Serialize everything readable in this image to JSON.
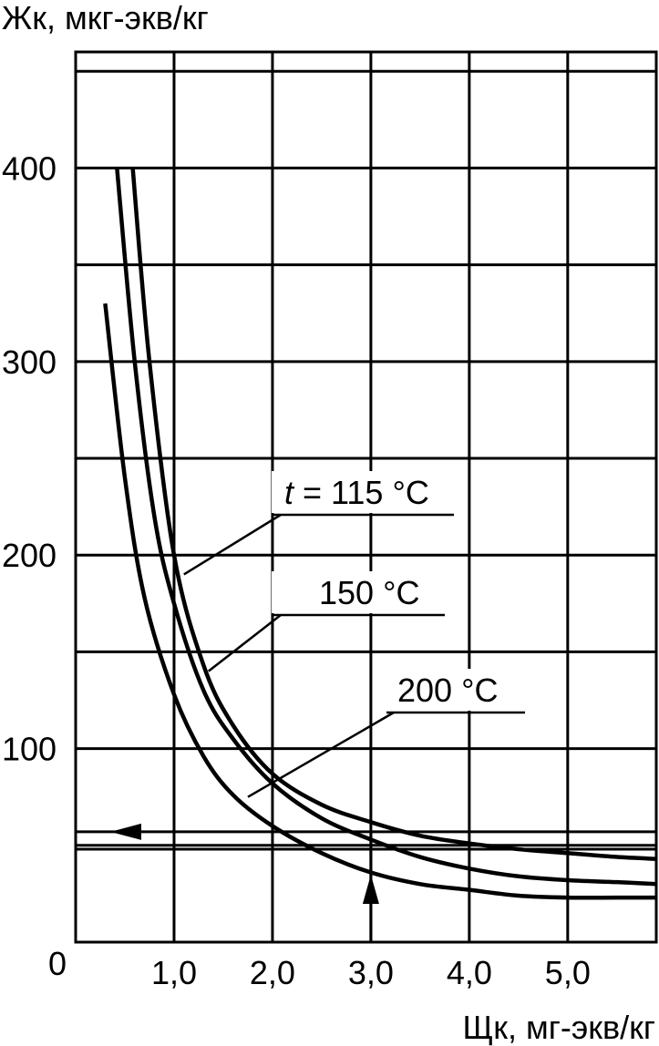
{
  "chart_data": {
    "type": "line",
    "ylabel": "Жк, мкг-экв/кг",
    "xlabel": "Щк, мг-экв/кг",
    "origin_label": "0",
    "xlim": [
      0,
      5.9
    ],
    "ylim": [
      0,
      460
    ],
    "x_ticks": [
      {
        "value": 1,
        "label": "1,0"
      },
      {
        "value": 2,
        "label": "2,0"
      },
      {
        "value": 3,
        "label": "3,0"
      },
      {
        "value": 4,
        "label": "4,0"
      },
      {
        "value": 5,
        "label": "5,0"
      }
    ],
    "y_ticks": [
      {
        "value": 100,
        "label": "100"
      },
      {
        "value": 200,
        "label": "200"
      },
      {
        "value": 300,
        "label": "300"
      },
      {
        "value": 400,
        "label": "400"
      }
    ],
    "grid": true,
    "series": [
      {
        "name": "t = 115 °C",
        "x": [
          0.58,
          0.75,
          1.0,
          1.3,
          1.6,
          2.0,
          2.5,
          3.0,
          3.5,
          4.0,
          4.5,
          5.0,
          5.5,
          5.9
        ],
        "y": [
          400,
          300,
          200,
          143,
          112,
          87,
          71,
          62,
          55,
          51,
          48,
          46,
          44,
          43
        ]
      },
      {
        "name": "150 °C",
        "x": [
          0.42,
          0.6,
          0.8,
          1.0,
          1.3,
          1.6,
          2.0,
          2.5,
          3.0,
          3.5,
          4.0,
          4.5,
          5.0,
          5.5,
          5.9
        ],
        "y": [
          400,
          300,
          220,
          175,
          130,
          105,
          82,
          64,
          53,
          44,
          38,
          34,
          32,
          31,
          30
        ]
      },
      {
        "name": "200 °C",
        "x": [
          0.3,
          0.5,
          0.7,
          1.0,
          1.3,
          1.6,
          2.0,
          2.5,
          3.0,
          3.5,
          4.0,
          4.5,
          5.0,
          5.5,
          5.9
        ],
        "y": [
          330,
          240,
          178,
          128,
          96,
          76,
          60,
          46,
          36,
          30,
          27,
          24,
          23,
          23,
          23
        ]
      }
    ],
    "annotations": [
      {
        "text": "t = 115 °C",
        "italic_prefix": "t",
        "rest": " = 115 °C",
        "points_to": {
          "x": 1.1,
          "y": 190
        }
      },
      {
        "text": "150 °C",
        "points_to": {
          "x": 1.35,
          "y": 140
        }
      },
      {
        "text": "200 °C",
        "points_to": {
          "x": 1.75,
          "y": 75
        }
      }
    ],
    "reference_lines": [
      {
        "kind": "horizontal",
        "y": 48,
        "arrow": "none"
      },
      {
        "kind": "horizontal",
        "y": 57,
        "arrow": "left"
      },
      {
        "kind": "vertical",
        "x": 3.0,
        "y_from": 0,
        "y_to": 57,
        "arrow": "up"
      }
    ]
  }
}
